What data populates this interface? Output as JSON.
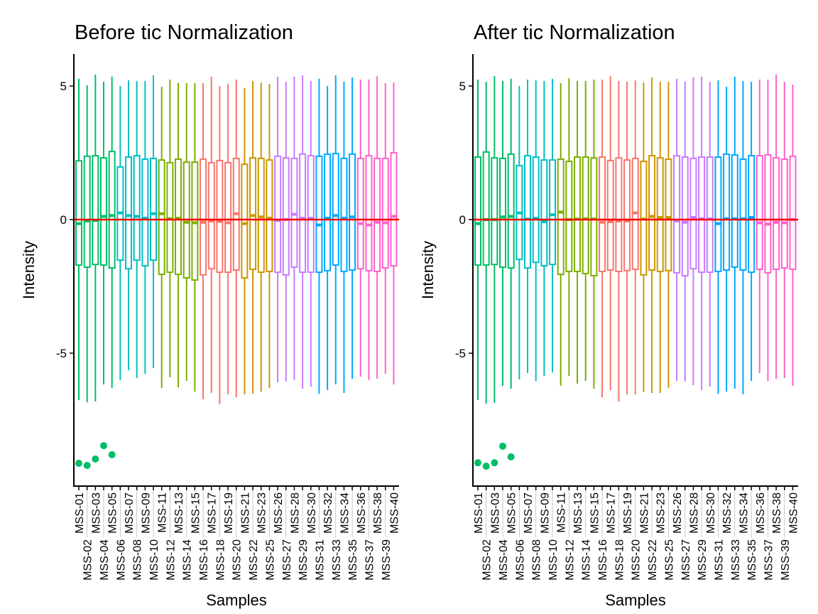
{
  "chart_data": [
    {
      "type": "boxplot",
      "title": "Before tic Normalization",
      "xlabel": "Samples",
      "ylabel": "Intensity",
      "ylim": [
        -10,
        6.1
      ],
      "yticks": [
        5,
        0,
        -5
      ],
      "reference_line": {
        "y": 0,
        "color": "#FF0000"
      },
      "grid": false,
      "categories": [
        "MSS-01",
        "MSS-02",
        "MSS-03",
        "MSS-04",
        "MSS-05",
        "MSS-06",
        "MSS-07",
        "MSS-08",
        "MSS-09",
        "MSS-10",
        "MSS-11",
        "MSS-12",
        "MSS-13",
        "MSS-14",
        "MSS-15",
        "MSS-16",
        "MSS-17",
        "MSS-18",
        "MSS-19",
        "MSS-20",
        "MSS-21",
        "MSS-22",
        "MSS-23",
        "MSS-25",
        "MSS-26",
        "MSS-27",
        "MSS-28",
        "MSS-29",
        "MSS-30",
        "MSS-31",
        "MSS-32",
        "MSS-33",
        "MSS-34",
        "MSS-35",
        "MSS-36",
        "MSS-37",
        "MSS-38",
        "MSS-39",
        "MSS-40"
      ],
      "group_colors": [
        "#00BE67",
        "#00BE67",
        "#00BE67",
        "#00BE67",
        "#00BE67",
        "#00BFC4",
        "#00BFC4",
        "#00BFC4",
        "#00BFC4",
        "#00BFC4",
        "#7CAE00",
        "#7CAE00",
        "#7CAE00",
        "#7CAE00",
        "#7CAE00",
        "#F8766D",
        "#F8766D",
        "#F8766D",
        "#F8766D",
        "#F8766D",
        "#CD9600",
        "#CD9600",
        "#CD9600",
        "#CD9600",
        "#C77CFF",
        "#C77CFF",
        "#C77CFF",
        "#C77CFF",
        "#C77CFF",
        "#00A9FF",
        "#00A9FF",
        "#00A9FF",
        "#00A9FF",
        "#00A9FF",
        "#FF61CC",
        "#FF61CC",
        "#FF61CC",
        "#FF61CC",
        "#FF61CC"
      ],
      "whisker_high": [
        5.27,
        5.03,
        5.43,
        5.16,
        5.35,
        5.0,
        5.21,
        5.19,
        5.19,
        5.4,
        4.97,
        5.24,
        5.11,
        5.11,
        5.11,
        5.11,
        5.35,
        5.0,
        5.08,
        5.24,
        4.92,
        5.19,
        5.13,
        5.08,
        5.35,
        5.16,
        5.35,
        5.4,
        5.19,
        5.27,
        5.0,
        5.4,
        5.16,
        5.32,
        5.24,
        5.24,
        5.37,
        5.11,
        5.13
      ],
      "q3": [
        2.2,
        2.37,
        2.39,
        2.31,
        2.55,
        1.97,
        2.34,
        2.39,
        2.26,
        2.29,
        2.23,
        2.13,
        2.26,
        2.15,
        2.15,
        2.26,
        2.13,
        2.21,
        2.13,
        2.29,
        2.07,
        2.31,
        2.29,
        2.23,
        2.37,
        2.31,
        2.29,
        2.45,
        2.39,
        2.37,
        2.45,
        2.47,
        2.29,
        2.45,
        2.29,
        2.39,
        2.29,
        2.29,
        2.5
      ],
      "median": [
        -0.15,
        -0.05,
        -0.03,
        0.12,
        0.15,
        0.25,
        0.15,
        0.12,
        0.05,
        0.22,
        0.22,
        0.03,
        0.05,
        -0.1,
        -0.12,
        -0.1,
        -0.05,
        -0.07,
        -0.12,
        0.22,
        -0.15,
        0.15,
        0.1,
        0.05,
        -0.03,
        0.0,
        0.2,
        0.05,
        0.05,
        -0.2,
        0.05,
        0.15,
        0.05,
        0.1,
        -0.15,
        -0.2,
        -0.1,
        -0.12,
        0.12
      ],
      "q1": [
        -1.7,
        -1.78,
        -1.68,
        -1.7,
        -1.81,
        -1.52,
        -1.84,
        -1.52,
        -1.73,
        -1.52,
        -2.05,
        -1.97,
        -2.05,
        -2.18,
        -2.26,
        -2.07,
        -1.84,
        -1.97,
        -1.97,
        -1.89,
        -2.18,
        -1.86,
        -1.97,
        -1.94,
        -1.97,
        -2.07,
        -1.78,
        -1.97,
        -1.97,
        -1.97,
        -1.91,
        -1.7,
        -1.94,
        -1.89,
        -1.84,
        -1.91,
        -1.94,
        -1.81,
        -1.73
      ],
      "whisker_low": [
        -6.76,
        -6.84,
        -6.81,
        -6.17,
        -6.3,
        -6.01,
        -5.64,
        -5.93,
        -5.77,
        -5.56,
        -6.3,
        -5.9,
        -6.28,
        -6.04,
        -6.44,
        -6.73,
        -6.49,
        -6.91,
        -6.54,
        -6.65,
        -6.54,
        -6.52,
        -6.44,
        -6.3,
        -6.09,
        -6.06,
        -6.01,
        -6.33,
        -6.25,
        -6.52,
        -6.38,
        -6.17,
        -6.49,
        -5.96,
        -5.88,
        -6.01,
        -5.96,
        -5.77,
        -6.17
      ],
      "outliers": [
        {
          "sample": "MSS-01",
          "y": -9.12
        },
        {
          "sample": "MSS-02",
          "y": -9.2
        },
        {
          "sample": "MSS-03",
          "y": -8.96
        },
        {
          "sample": "MSS-04",
          "y": -8.46
        },
        {
          "sample": "MSS-05",
          "y": -8.8
        }
      ]
    },
    {
      "type": "boxplot",
      "title": "After tic Normalization",
      "xlabel": "Samples",
      "ylabel": "Intensity",
      "ylim": [
        -10,
        6.1
      ],
      "yticks": [
        5,
        0,
        -5
      ],
      "reference_line": {
        "y": 0,
        "color": "#FF0000"
      },
      "grid": false,
      "categories": [
        "MSS-01",
        "MSS-02",
        "MSS-03",
        "MSS-04",
        "MSS-05",
        "MSS-06",
        "MSS-07",
        "MSS-08",
        "MSS-09",
        "MSS-10",
        "MSS-11",
        "MSS-12",
        "MSS-13",
        "MSS-14",
        "MSS-15",
        "MSS-16",
        "MSS-17",
        "MSS-18",
        "MSS-19",
        "MSS-20",
        "MSS-21",
        "MSS-22",
        "MSS-23",
        "MSS-25",
        "MSS-26",
        "MSS-27",
        "MSS-28",
        "MSS-29",
        "MSS-30",
        "MSS-31",
        "MSS-32",
        "MSS-33",
        "MSS-34",
        "MSS-35",
        "MSS-36",
        "MSS-37",
        "MSS-38",
        "MSS-39",
        "MSS-40"
      ],
      "group_colors": [
        "#00BE67",
        "#00BE67",
        "#00BE67",
        "#00BE67",
        "#00BE67",
        "#00BFC4",
        "#00BFC4",
        "#00BFC4",
        "#00BFC4",
        "#00BFC4",
        "#7CAE00",
        "#7CAE00",
        "#7CAE00",
        "#7CAE00",
        "#7CAE00",
        "#F8766D",
        "#F8766D",
        "#F8766D",
        "#F8766D",
        "#F8766D",
        "#CD9600",
        "#CD9600",
        "#CD9600",
        "#CD9600",
        "#C77CFF",
        "#C77CFF",
        "#C77CFF",
        "#C77CFF",
        "#C77CFF",
        "#00A9FF",
        "#00A9FF",
        "#00A9FF",
        "#00A9FF",
        "#00A9FF",
        "#FF61CC",
        "#FF61CC",
        "#FF61CC",
        "#FF61CC",
        "#FF61CC"
      ],
      "whisker_high": [
        5.24,
        5.16,
        5.37,
        5.19,
        5.27,
        5.0,
        5.24,
        5.21,
        5.19,
        5.27,
        5.11,
        5.29,
        5.19,
        5.19,
        5.24,
        5.24,
        5.37,
        5.19,
        5.16,
        5.21,
        5.13,
        5.32,
        5.16,
        5.16,
        5.27,
        5.16,
        5.32,
        5.35,
        5.16,
        5.21,
        4.97,
        5.35,
        5.19,
        5.16,
        5.24,
        5.24,
        5.43,
        5.16,
        5.05
      ],
      "q3": [
        2.34,
        2.53,
        2.31,
        2.29,
        2.45,
        2.02,
        2.39,
        2.34,
        2.23,
        2.23,
        2.26,
        2.18,
        2.34,
        2.34,
        2.31,
        2.34,
        2.21,
        2.31,
        2.23,
        2.29,
        2.18,
        2.39,
        2.31,
        2.26,
        2.39,
        2.34,
        2.29,
        2.34,
        2.34,
        2.34,
        2.45,
        2.42,
        2.26,
        2.39,
        2.39,
        2.42,
        2.31,
        2.26,
        2.37
      ],
      "median": [
        -0.15,
        0.0,
        0.0,
        0.1,
        0.12,
        0.25,
        0.02,
        0.05,
        -0.08,
        0.18,
        0.28,
        0.0,
        0.02,
        0.03,
        0.02,
        -0.1,
        -0.08,
        -0.05,
        -0.05,
        0.25,
        0.02,
        0.12,
        0.08,
        0.08,
        -0.05,
        -0.1,
        0.08,
        0.03,
        0.03,
        -0.15,
        0.03,
        0.03,
        0.03,
        0.08,
        -0.12,
        -0.17,
        -0.1,
        -0.12,
        0.0
      ],
      "q1": [
        -1.7,
        -1.7,
        -1.68,
        -1.78,
        -1.81,
        -1.49,
        -1.81,
        -1.6,
        -1.73,
        -1.68,
        -2.05,
        -1.94,
        -1.94,
        -2.02,
        -2.1,
        -1.94,
        -1.89,
        -1.94,
        -1.91,
        -1.86,
        -2.07,
        -1.89,
        -1.94,
        -1.91,
        -1.99,
        -2.1,
        -1.84,
        -1.97,
        -1.97,
        -1.94,
        -1.89,
        -1.78,
        -1.89,
        -1.97,
        -1.86,
        -1.99,
        -1.86,
        -1.81,
        -1.86
      ],
      "whisker_low": [
        -6.76,
        -6.89,
        -6.86,
        -6.22,
        -6.33,
        -5.98,
        -5.74,
        -6.04,
        -5.85,
        -5.72,
        -6.22,
        -5.85,
        -6.14,
        -6.04,
        -6.33,
        -6.65,
        -6.38,
        -6.81,
        -6.54,
        -6.54,
        -6.46,
        -6.49,
        -6.49,
        -6.3,
        -6.04,
        -6.06,
        -6.2,
        -6.38,
        -6.25,
        -6.52,
        -6.44,
        -6.33,
        -6.54,
        -6.04,
        -5.74,
        -6.04,
        -5.96,
        -5.93,
        -6.22
      ],
      "outliers": [
        {
          "sample": "MSS-01",
          "y": -9.1
        },
        {
          "sample": "MSS-02",
          "y": -9.23
        },
        {
          "sample": "MSS-03",
          "y": -9.1
        },
        {
          "sample": "MSS-04",
          "y": -8.48
        },
        {
          "sample": "MSS-05",
          "y": -8.88
        }
      ]
    }
  ]
}
